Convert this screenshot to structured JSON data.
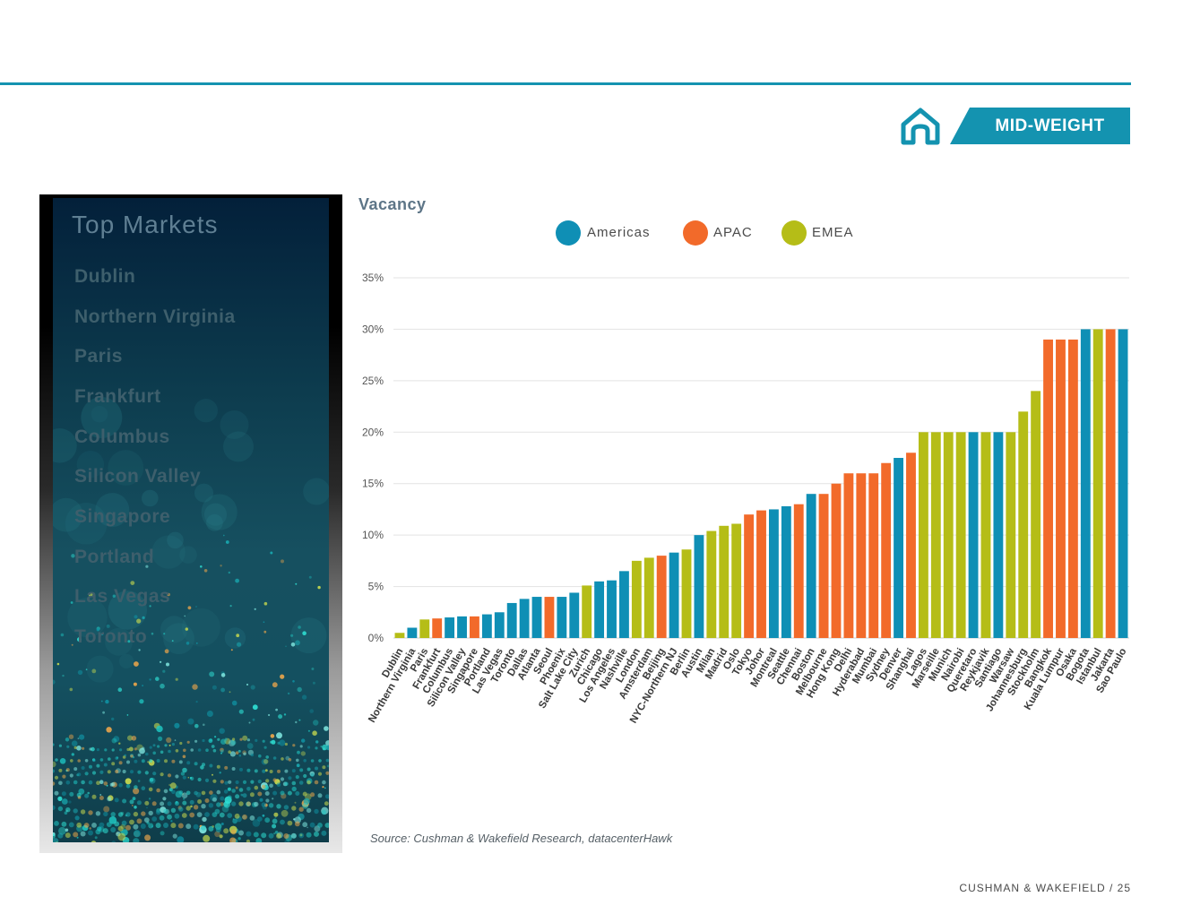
{
  "header": {
    "badge_label": "MID-WEIGHT",
    "icon": "home-icon",
    "accent_color": "#1493b0"
  },
  "sidebar": {
    "title": "Top Markets",
    "markets": [
      "Dublin",
      "Northern Virginia",
      "Paris",
      "Frankfurt",
      "Columbus",
      "Silicon Valley",
      "Singapore",
      "Portland",
      "Las Vegas",
      "Toronto"
    ]
  },
  "legend": [
    {
      "label": "Americas",
      "color": "#0f8fb5"
    },
    {
      "label": "APAC",
      "color": "#f26a2a"
    },
    {
      "label": "EMEA",
      "color": "#b5bd17"
    }
  ],
  "chart_data": {
    "type": "bar",
    "title": "Vacancy",
    "xlabel": "",
    "ylabel": "",
    "ylim": [
      0,
      35
    ],
    "yticks": [
      "0%",
      "5%",
      "10%",
      "15%",
      "20%",
      "25%",
      "30%",
      "35%"
    ],
    "grid": true,
    "legend_position": "top",
    "categories": [
      "Dublin",
      "Northern Virginia",
      "Paris",
      "Frankfurt",
      "Columbus",
      "Silicon Valley",
      "Singapore",
      "Portland",
      "Las Vegas",
      "Toronto",
      "Dallas",
      "Atlanta",
      "Seoul",
      "Phoenix",
      "Salt Lake City",
      "Zurich",
      "Chicago",
      "Los Angeles",
      "Nashville",
      "London",
      "Amsterdam",
      "Beijing",
      "NYC-Northern NJ",
      "Berlin",
      "Austin",
      "Milan",
      "Madrid",
      "Oslo",
      "Tokyo",
      "Johor",
      "Montreal",
      "Seattle",
      "Chennai",
      "Boston",
      "Melbourne",
      "Hong Kong",
      "Delhi",
      "Hyderabad",
      "Mumbai",
      "Sydney",
      "Denver",
      "Shanghai",
      "Lagos",
      "Marseille",
      "Munich",
      "Nairobi",
      "Queretaro",
      "Reykjavik",
      "Santiago",
      "Warsaw",
      "Johannesburg",
      "Stockholm",
      "Bangkok",
      "Kuala Lumpur",
      "Osaka",
      "Bogota",
      "Istanbul",
      "Jakarta",
      "Sao Paulo"
    ],
    "values": [
      0.5,
      1.0,
      1.8,
      1.9,
      2.0,
      2.1,
      2.1,
      2.3,
      2.5,
      3.4,
      3.8,
      4.0,
      4.0,
      4.0,
      4.4,
      5.1,
      5.5,
      5.6,
      6.5,
      7.5,
      7.8,
      8.0,
      8.3,
      8.6,
      10.0,
      10.4,
      10.9,
      11.1,
      12.0,
      12.4,
      12.5,
      12.8,
      13.0,
      14.0,
      14.0,
      15.0,
      16.0,
      16.0,
      16.0,
      17.0,
      17.5,
      18.0,
      20.0,
      20.0,
      20.0,
      20.0,
      20.0,
      20.0,
      20.0,
      20.0,
      22.0,
      24.0,
      29.0,
      29.0,
      29.0,
      30.0,
      30.0,
      30.0,
      30.0
    ],
    "regions": [
      "EMEA",
      "Americas",
      "EMEA",
      "APAC",
      "Americas",
      "Americas",
      "APAC",
      "Americas",
      "Americas",
      "Americas",
      "Americas",
      "Americas",
      "APAC",
      "Americas",
      "Americas",
      "EMEA",
      "Americas",
      "Americas",
      "Americas",
      "EMEA",
      "EMEA",
      "APAC",
      "Americas",
      "EMEA",
      "Americas",
      "EMEA",
      "EMEA",
      "EMEA",
      "APAC",
      "APAC",
      "Americas",
      "Americas",
      "APAC",
      "Americas",
      "APAC",
      "APAC",
      "APAC",
      "APAC",
      "APAC",
      "APAC",
      "Americas",
      "APAC",
      "EMEA",
      "EMEA",
      "EMEA",
      "EMEA",
      "Americas",
      "EMEA",
      "Americas",
      "EMEA",
      "EMEA",
      "EMEA",
      "APAC",
      "APAC",
      "APAC",
      "Americas",
      "EMEA",
      "APAC",
      "Americas"
    ]
  },
  "source": "Source: Cushman & Wakefield Research, datacenterHawk",
  "footer": "CUSHMAN & WAKEFIELD / 25"
}
